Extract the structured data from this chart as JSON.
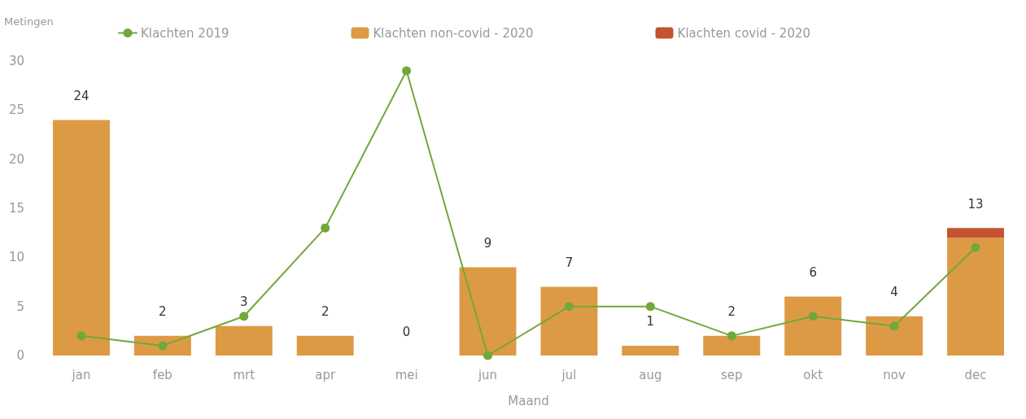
{
  "chart_data": {
    "type": "bar",
    "stacked": true,
    "xlabel": "Maand",
    "ylabel": "Metingen",
    "categories": [
      "jan",
      "feb",
      "mrt",
      "apr",
      "mei",
      "jun",
      "jul",
      "aug",
      "sep",
      "okt",
      "nov",
      "dec"
    ],
    "series": [
      {
        "name": "Klachten 2019",
        "type": "line",
        "color": "#72a83a",
        "marker": "circle",
        "values": [
          2,
          1,
          4,
          13,
          29,
          0,
          5,
          5,
          2,
          4,
          3,
          11
        ]
      },
      {
        "name": "Klachten non-covid - 2020",
        "color": "#dd9a45",
        "values": [
          24,
          2,
          3,
          2,
          0,
          9,
          7,
          1,
          2,
          6,
          4,
          12
        ]
      },
      {
        "name": "Klachten covid - 2020",
        "color": "#c4532f",
        "values": [
          0,
          0,
          0,
          0,
          0,
          0,
          0,
          0,
          0,
          0,
          0,
          1
        ]
      }
    ],
    "totals": [
      "24",
      "2",
      "3",
      "2",
      "0",
      "9",
      "7",
      "1",
      "2",
      "6",
      "4",
      "13"
    ],
    "ylim": [
      0,
      30
    ],
    "yticks": [
      0,
      5,
      10,
      15,
      20,
      25,
      30
    ],
    "grid": false,
    "legend": "top"
  }
}
